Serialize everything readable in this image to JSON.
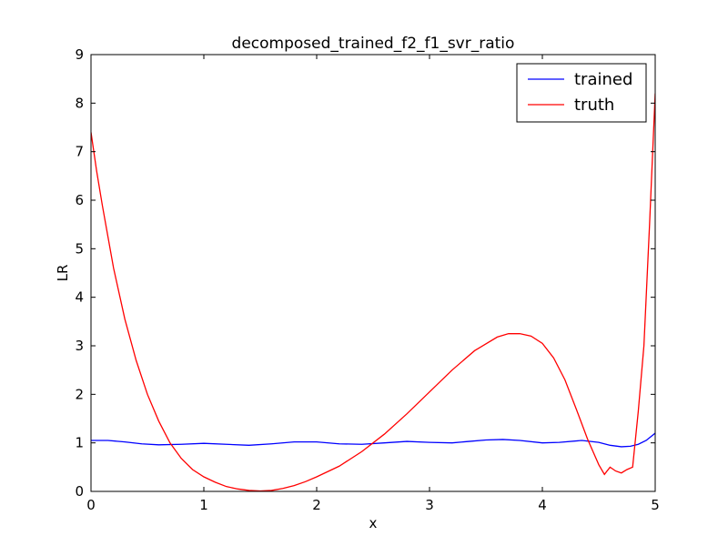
{
  "chart_data": {
    "type": "line",
    "title": "decomposed_trained_f2_f1_svr_ratio",
    "xlabel": "x",
    "ylabel": "LR",
    "xlim": [
      0,
      5
    ],
    "ylim": [
      0,
      9
    ],
    "xticks": [
      0,
      1,
      2,
      3,
      4,
      5
    ],
    "yticks": [
      0,
      1,
      2,
      3,
      4,
      5,
      6,
      7,
      8,
      9
    ],
    "grid": false,
    "legend_position": "top-right",
    "series": [
      {
        "name": "trained",
        "color": "#0000ff",
        "x": [
          0,
          0.15,
          0.3,
          0.45,
          0.6,
          0.8,
          1.0,
          1.2,
          1.4,
          1.6,
          1.8,
          2.0,
          2.2,
          2.4,
          2.6,
          2.8,
          3.0,
          3.2,
          3.35,
          3.5,
          3.65,
          3.8,
          4.0,
          4.15,
          4.35,
          4.5,
          4.6,
          4.7,
          4.78,
          4.85,
          4.92,
          5.0
        ],
        "y": [
          1.05,
          1.05,
          1.02,
          0.98,
          0.96,
          0.97,
          0.99,
          0.97,
          0.95,
          0.98,
          1.02,
          1.02,
          0.98,
          0.97,
          1.0,
          1.03,
          1.01,
          1.0,
          1.03,
          1.06,
          1.07,
          1.05,
          1.0,
          1.01,
          1.05,
          1.01,
          0.95,
          0.92,
          0.93,
          0.97,
          1.05,
          1.2
        ]
      },
      {
        "name": "truth",
        "color": "#ff0000",
        "x": [
          0,
          0.05,
          0.1,
          0.2,
          0.3,
          0.4,
          0.5,
          0.6,
          0.7,
          0.8,
          0.9,
          1.0,
          1.1,
          1.2,
          1.3,
          1.4,
          1.5,
          1.6,
          1.7,
          1.8,
          1.9,
          2.0,
          2.2,
          2.4,
          2.6,
          2.8,
          3.0,
          3.2,
          3.4,
          3.6,
          3.7,
          3.8,
          3.9,
          4.0,
          4.1,
          4.2,
          4.3,
          4.4,
          4.5,
          4.55,
          4.6,
          4.65,
          4.7,
          4.75,
          4.8,
          4.85,
          4.9,
          4.95,
          5.0
        ],
        "y": [
          7.4,
          6.6,
          5.9,
          4.6,
          3.55,
          2.7,
          2.0,
          1.45,
          1.0,
          0.68,
          0.45,
          0.3,
          0.19,
          0.1,
          0.05,
          0.02,
          0.01,
          0.02,
          0.06,
          0.12,
          0.2,
          0.3,
          0.52,
          0.82,
          1.18,
          1.6,
          2.05,
          2.5,
          2.9,
          3.18,
          3.25,
          3.25,
          3.2,
          3.05,
          2.75,
          2.3,
          1.7,
          1.08,
          0.55,
          0.35,
          0.5,
          0.42,
          0.38,
          0.45,
          0.5,
          1.65,
          3.0,
          5.5,
          8.2
        ]
      }
    ]
  }
}
